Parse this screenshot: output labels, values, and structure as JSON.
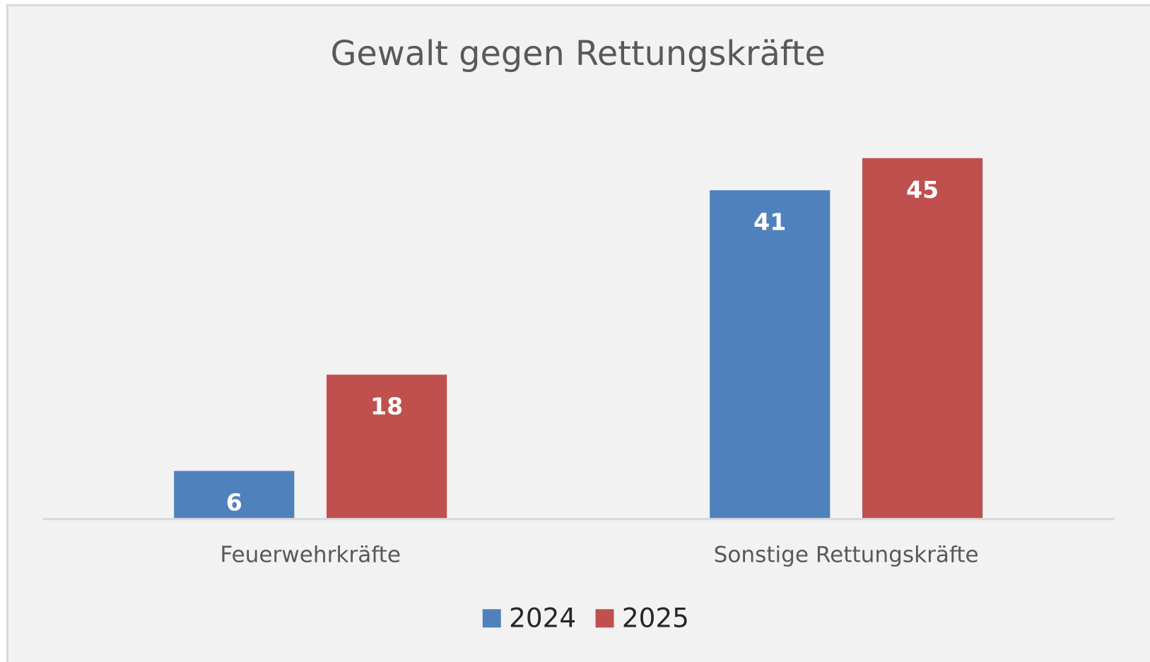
{
  "chart_data": {
    "type": "bar",
    "title": "Gewalt gegen Rettungskräfte",
    "categories": [
      "Feuerwehrkräfte",
      "Sonstige Rettungskräfte"
    ],
    "series": [
      {
        "name": "2024",
        "color": "#4f81bd",
        "values": [
          6,
          41
        ]
      },
      {
        "name": "2025",
        "color": "#c0504d",
        "values": [
          18,
          45
        ]
      }
    ],
    "ylim": [
      0,
      50
    ],
    "legend": "bottom"
  }
}
